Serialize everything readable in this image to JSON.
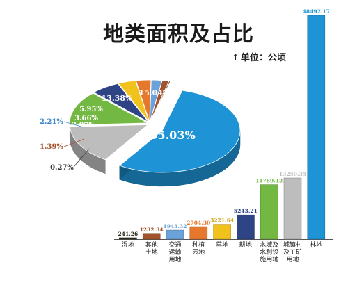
{
  "title": "地类面积及占比",
  "unit": {
    "arrow": "↑",
    "text": "单位：公顷"
  },
  "colors": {
    "wetland": "#2b2d1f",
    "other": "#a4522b",
    "transport": "#6aa2d9",
    "orchard": "#e6782d",
    "grass": "#f2c21c",
    "farmland": "#2e4484",
    "water": "#74b844",
    "urban": "#bdbdbd",
    "forest": "#1e94d6"
  },
  "chart_data": [
    {
      "type": "pie",
      "title": "",
      "slices": [
        {
          "key": "forest",
          "value": 55.03,
          "label": "55.03%"
        },
        {
          "key": "urban",
          "value": 15.04,
          "label": "15.04%"
        },
        {
          "key": "water",
          "value": 13.38,
          "label": "13.38%"
        },
        {
          "key": "farmland",
          "value": 5.95,
          "label": "5.95%"
        },
        {
          "key": "grass",
          "value": 3.66,
          "label": "3.66%"
        },
        {
          "key": "orchard",
          "value": 3.07,
          "label": "3.07%"
        },
        {
          "key": "transport",
          "value": 2.21,
          "label": "2.21%"
        },
        {
          "key": "other",
          "value": 1.39,
          "label": "1.39%"
        },
        {
          "key": "wetland",
          "value": 0.27,
          "label": "0.27%"
        }
      ]
    },
    {
      "type": "bar",
      "title": "",
      "xlabel": "",
      "ylabel": "",
      "ylim": [
        0,
        48492.17
      ],
      "categories": [
        {
          "key": "wetland",
          "lines": [
            "湿地"
          ]
        },
        {
          "key": "other",
          "lines": [
            "其他",
            "土地"
          ]
        },
        {
          "key": "transport",
          "lines": [
            "交通",
            "运输",
            "用地"
          ]
        },
        {
          "key": "orchard",
          "lines": [
            "种植",
            "园地"
          ]
        },
        {
          "key": "grass",
          "lines": [
            "草地"
          ]
        },
        {
          "key": "farmland",
          "lines": [
            "耕地"
          ]
        },
        {
          "key": "water",
          "lines": [
            "水域及",
            "水利设",
            "施用地"
          ]
        },
        {
          "key": "urban",
          "lines": [
            "城镇村",
            "及工矿",
            "用地"
          ]
        },
        {
          "key": "forest",
          "lines": [
            "林地"
          ]
        }
      ],
      "values": [
        241.26,
        1232.34,
        1943.32,
        2704.3,
        3221.64,
        5243.21,
        11789.12,
        13250.35,
        48492.17
      ],
      "value_labels": [
        "241.26",
        "1232.34",
        "1943.32",
        "2704.30",
        "3221.64",
        "5243.21",
        "11789.12",
        "13250.35",
        "48492.17"
      ]
    }
  ]
}
